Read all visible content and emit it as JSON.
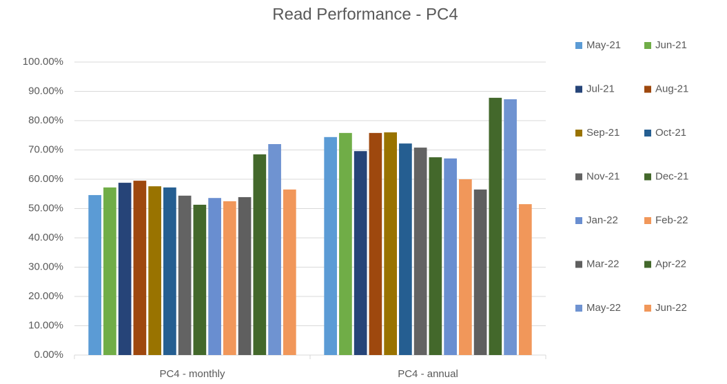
{
  "chart_data": {
    "type": "bar",
    "title": "Read Performance  - PC4",
    "categories": [
      "PC4 - monthly",
      "PC4 - annual"
    ],
    "series": [
      {
        "name": "May-21",
        "color": "#5b9bd5",
        "values": [
          54.6,
          74.4
        ]
      },
      {
        "name": "Jun-21",
        "color": "#70ad47",
        "values": [
          57.2,
          75.8
        ]
      },
      {
        "name": "Jul-21",
        "color": "#264478",
        "values": [
          58.8,
          69.6
        ]
      },
      {
        "name": "Aug-21",
        "color": "#9e480e",
        "values": [
          59.5,
          75.8
        ]
      },
      {
        "name": "Sep-21",
        "color": "#997300",
        "values": [
          57.6,
          76.0
        ]
      },
      {
        "name": "Oct-21",
        "color": "#255e91",
        "values": [
          57.2,
          72.2
        ]
      },
      {
        "name": "Nov-21",
        "color": "#636363",
        "values": [
          54.4,
          70.8
        ]
      },
      {
        "name": "Dec-21",
        "color": "#43682b",
        "values": [
          51.3,
          67.5
        ]
      },
      {
        "name": "Jan-22",
        "color": "#698ed0",
        "values": [
          53.6,
          67.1
        ]
      },
      {
        "name": "Feb-22",
        "color": "#f1975a",
        "values": [
          52.5,
          60.0
        ]
      },
      {
        "name": "Mar-22",
        "color": "#5f5f5f",
        "values": [
          53.9,
          56.5
        ]
      },
      {
        "name": "Apr-22",
        "color": "#43682b",
        "values": [
          68.5,
          87.8
        ]
      },
      {
        "name": "May-22",
        "color": "#6f93d1",
        "values": [
          72.0,
          87.3
        ]
      },
      {
        "name": "Jun-22",
        "color": "#f1975a",
        "values": [
          56.5,
          51.5
        ]
      }
    ],
    "ylim": [
      0,
      100
    ],
    "yticks": [
      {
        "value": 0,
        "label": "0.00%"
      },
      {
        "value": 10,
        "label": "10.00%"
      },
      {
        "value": 20,
        "label": "20.00%"
      },
      {
        "value": 30,
        "label": "30.00%"
      },
      {
        "value": 40,
        "label": "40.00%"
      },
      {
        "value": 50,
        "label": "50.00%"
      },
      {
        "value": 60,
        "label": "60.00%"
      },
      {
        "value": 70,
        "label": "70.00%"
      },
      {
        "value": 80,
        "label": "80.00%"
      },
      {
        "value": 90,
        "label": "90.00%"
      },
      {
        "value": 100,
        "label": "100.00%"
      }
    ],
    "grid": true,
    "legend": "right"
  }
}
